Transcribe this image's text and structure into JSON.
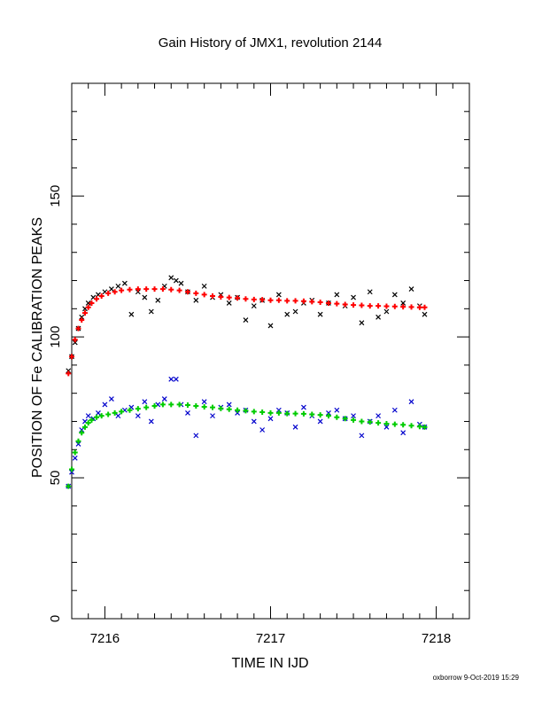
{
  "chart_data": {
    "type": "scatter",
    "title": "Gain History of JMX1, revolution 2144",
    "xlabel": "TIME IN IJD",
    "ylabel": "POSITION OF Fe CALIBRATION PEAKS",
    "xlim": [
      7215.8,
      7218.2
    ],
    "ylim": [
      0,
      190
    ],
    "xticks": [
      7216,
      7217,
      7218
    ],
    "yticks": [
      0,
      50,
      100,
      150
    ],
    "xtick_labels": [
      "7216",
      "7217",
      "7218"
    ],
    "ytick_labels": [
      "0",
      "50",
      "100",
      "150"
    ],
    "grid": false,
    "series": [
      {
        "marker": "x",
        "color": "#000000",
        "x": [
          7215.78,
          7215.8,
          7215.82,
          7215.84,
          7215.86,
          7215.88,
          7215.9,
          7215.93,
          7215.96,
          7216.0,
          7216.04,
          7216.08,
          7216.12,
          7216.16,
          7216.2,
          7216.24,
          7216.28,
          7216.32,
          7216.36,
          7216.4,
          7216.43,
          7216.46,
          7216.5,
          7216.55,
          7216.6,
          7216.65,
          7216.7,
          7216.75,
          7216.8,
          7216.85,
          7216.9,
          7216.95,
          7217.0,
          7217.05,
          7217.1,
          7217.15,
          7217.2,
          7217.25,
          7217.3,
          7217.35,
          7217.4,
          7217.45,
          7217.5,
          7217.55,
          7217.6,
          7217.65,
          7217.7,
          7217.75,
          7217.8,
          7217.85,
          7217.9,
          7217.93
        ],
        "y": [
          88,
          93,
          98,
          103,
          107,
          110,
          112,
          114,
          115,
          116,
          117,
          118,
          119,
          108,
          116,
          114,
          109,
          113,
          118,
          121,
          120,
          119,
          116,
          113,
          118,
          114,
          115,
          112,
          114,
          106,
          111,
          113,
          104,
          115,
          108,
          109,
          112,
          113,
          108,
          112,
          115,
          111,
          114,
          105,
          116,
          107,
          109,
          115,
          112,
          117,
          111,
          108
        ]
      },
      {
        "marker": "+",
        "color": "#ff0000",
        "x": [
          7215.78,
          7215.8,
          7215.82,
          7215.84,
          7215.86,
          7215.88,
          7215.9,
          7215.92,
          7215.95,
          7215.98,
          7216.02,
          7216.06,
          7216.1,
          7216.15,
          7216.2,
          7216.25,
          7216.3,
          7216.35,
          7216.4,
          7216.45,
          7216.5,
          7216.55,
          7216.6,
          7216.65,
          7216.7,
          7216.75,
          7216.8,
          7216.85,
          7216.9,
          7216.95,
          7217.0,
          7217.05,
          7217.1,
          7217.15,
          7217.2,
          7217.25,
          7217.3,
          7217.35,
          7217.4,
          7217.45,
          7217.5,
          7217.55,
          7217.6,
          7217.65,
          7217.7,
          7217.75,
          7217.8,
          7217.85,
          7217.9,
          7217.93
        ],
        "y": [
          87,
          93,
          99,
          103,
          106,
          108.5,
          110.5,
          112,
          113.5,
          114.5,
          115.5,
          116,
          116.5,
          116.8,
          117,
          117,
          117,
          117,
          116.8,
          116.5,
          116,
          115.5,
          115,
          114.5,
          114.2,
          114,
          113.8,
          113.5,
          113.3,
          113.2,
          113,
          113,
          112.8,
          112.8,
          112.7,
          112.5,
          112.3,
          112,
          111.8,
          111.5,
          111.3,
          111.2,
          111,
          111,
          110.9,
          110.8,
          110.7,
          110.6,
          110.5,
          110.5
        ]
      },
      {
        "marker": "x",
        "color": "#0000cc",
        "x": [
          7215.78,
          7215.8,
          7215.82,
          7215.84,
          7215.86,
          7215.88,
          7215.9,
          7215.93,
          7215.96,
          7216.0,
          7216.04,
          7216.08,
          7216.12,
          7216.16,
          7216.2,
          7216.24,
          7216.28,
          7216.32,
          7216.36,
          7216.4,
          7216.43,
          7216.46,
          7216.5,
          7216.55,
          7216.6,
          7216.65,
          7216.7,
          7216.75,
          7216.8,
          7216.85,
          7216.9,
          7216.95,
          7217.0,
          7217.05,
          7217.1,
          7217.15,
          7217.2,
          7217.25,
          7217.3,
          7217.35,
          7217.4,
          7217.45,
          7217.5,
          7217.55,
          7217.6,
          7217.65,
          7217.7,
          7217.75,
          7217.8,
          7217.85,
          7217.9,
          7217.93
        ],
        "y": [
          47,
          52,
          57,
          62,
          67,
          70,
          72,
          71,
          73,
          76,
          78,
          72,
          74,
          75,
          72,
          77,
          70,
          76,
          78,
          85,
          85,
          76,
          73,
          65,
          77,
          72,
          75,
          76,
          73,
          74,
          70,
          67,
          71,
          74,
          73,
          68,
          75,
          72,
          70,
          73,
          74,
          71,
          72,
          65,
          70,
          72,
          68,
          74,
          66,
          77,
          69,
          68
        ]
      },
      {
        "marker": "+",
        "color": "#00cc00",
        "x": [
          7215.78,
          7215.8,
          7215.82,
          7215.84,
          7215.86,
          7215.88,
          7215.9,
          7215.92,
          7215.95,
          7215.98,
          7216.02,
          7216.06,
          7216.1,
          7216.15,
          7216.2,
          7216.25,
          7216.3,
          7216.35,
          7216.4,
          7216.45,
          7216.5,
          7216.55,
          7216.6,
          7216.65,
          7216.7,
          7216.75,
          7216.8,
          7216.85,
          7216.9,
          7216.95,
          7217.0,
          7217.05,
          7217.1,
          7217.15,
          7217.2,
          7217.25,
          7217.3,
          7217.35,
          7217.4,
          7217.45,
          7217.5,
          7217.55,
          7217.6,
          7217.65,
          7217.7,
          7217.75,
          7217.8,
          7217.85,
          7217.9,
          7217.93
        ],
        "y": [
          47,
          53,
          59,
          63,
          66,
          68,
          69.5,
          70.5,
          71.5,
          72,
          72.5,
          73,
          73.5,
          74,
          74.5,
          75,
          75.5,
          76,
          76,
          76,
          75.8,
          75.5,
          75.2,
          75,
          74.6,
          74.3,
          74,
          73.8,
          73.5,
          73.3,
          73,
          73,
          72.8,
          72.8,
          72.7,
          72.5,
          72.3,
          72,
          71.5,
          71,
          70.5,
          70,
          69.8,
          69.5,
          69.2,
          69,
          68.8,
          68.5,
          68.2,
          68
        ]
      }
    ]
  },
  "footer": "oxborrow 9-Oct-2019 15:29"
}
